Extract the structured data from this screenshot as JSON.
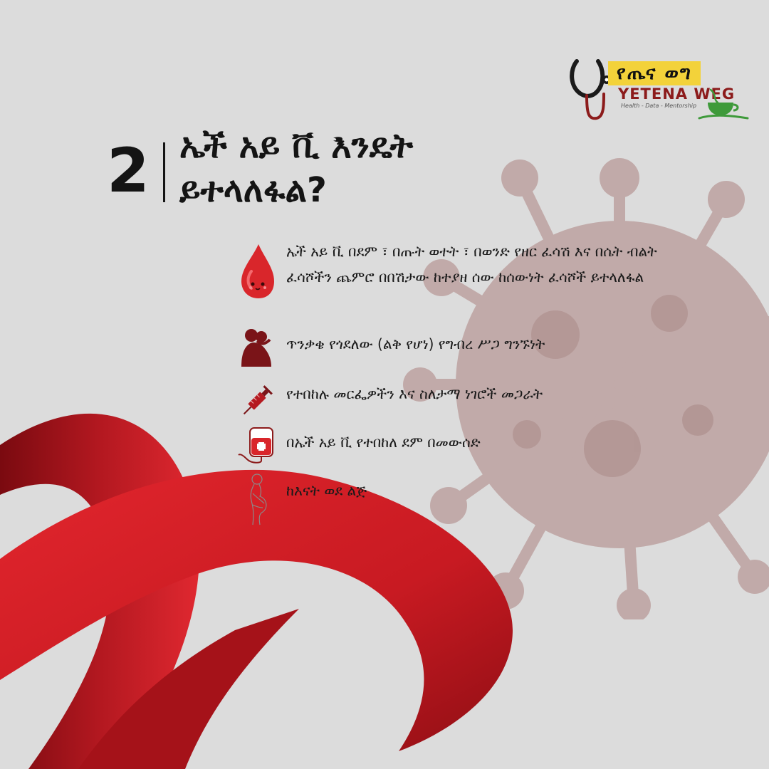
{
  "logo": {
    "amharic": "የጤና ወግ",
    "latin": "YETENA WEG",
    "tagline": "Health - Data - Mentorship",
    "icons": [
      "stethoscope-icon",
      "tea-cup-icon"
    ]
  },
  "header": {
    "number": "2",
    "title_line1": "ኤች አይ ቪ እንዴት",
    "title_line2": "ይተላለፋል?"
  },
  "items": [
    {
      "icon": "blood-drop-icon",
      "text": "ኤች አይ ቪ በደም ፣ በጡት ወተት ፣ በወንድ የዘር ፈሳሽ እና በሴት ብልት ፈሳሾችን ጨምሮ በበሽታው ከተያዘ ሰው ከሰውነት ፈሳሾች ይተላለፋል"
    },
    {
      "icon": "couple-icon",
      "text": "ጥንቃቄ የጎደለው (ልቅ የሆነ)  የግብረ ሥጋ ግንኙነት"
    },
    {
      "icon": "syringe-icon",
      "text": "የተበከሉ መርፌዎችን እና ስለታማ ነገሮች መጋራት"
    },
    {
      "icon": "blood-bag-icon",
      "text": "በኤች አይ ቪ የተበከለ ደም በመውሰድ"
    },
    {
      "icon": "pregnant-woman-icon",
      "text": "ከእናት ወደ ልጅ"
    }
  ],
  "colors": {
    "background": "#dcdcdc",
    "ribbon": "#c81a22",
    "virus": "#b99a98",
    "logo_yellow": "#f3d23a",
    "logo_red": "#8c1b1b",
    "logo_green": "#3e9a3a"
  },
  "decorations": [
    "red-ribbon",
    "virus-illustration"
  ]
}
